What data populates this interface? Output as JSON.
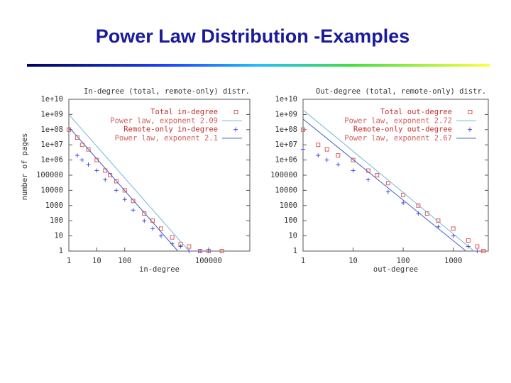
{
  "title": "Power Law Distribution -Examples",
  "chart_data": [
    {
      "type": "scatter",
      "title": "In-degree (total, remote-only) distr.",
      "xlabel": "in-degree",
      "ylabel": "number of pages",
      "log_x": true,
      "log_y": true,
      "xlim": [
        1,
        3000000
      ],
      "ylim": [
        1,
        10000000000
      ],
      "xticks": [
        1,
        10,
        100,
        100000
      ],
      "yticks": [
        1,
        10,
        100,
        1000,
        10000,
        100000,
        {
          "value": 1000000,
          "label": "1e+06"
        },
        {
          "value": 10000000,
          "label": "1e+07"
        },
        {
          "value": 100000000,
          "label": "1e+08"
        },
        {
          "value": 1000000000,
          "label": "1e+09"
        },
        {
          "value": 10000000000,
          "label": "1e+10"
        }
      ],
      "legend": "upper right",
      "series": [
        {
          "name": "Total in-degree",
          "color": "#e05a5a",
          "marker": "square",
          "x": [
            1,
            2,
            3,
            5,
            10,
            20,
            30,
            50,
            100,
            200,
            500,
            1000,
            2000,
            5000,
            10000,
            20000,
            50000,
            100000,
            300000
          ],
          "values": [
            100000000,
            30000000,
            10000000,
            5000000,
            1000000,
            200000,
            100000,
            40000,
            10000,
            2000,
            300,
            100,
            30,
            8,
            3,
            2,
            1,
            1,
            1
          ]
        },
        {
          "name": "Power law, exponent 2.09",
          "color": "#70b8d8",
          "marker": "line",
          "x": [
            1,
            20000
          ],
          "values": [
            1000000000,
            1
          ]
        },
        {
          "name": "Remote-only in-degree",
          "color": "#4a50e0",
          "marker": "plus",
          "x": [
            2,
            3,
            5,
            10,
            20,
            50,
            100,
            200,
            500,
            1000,
            2000,
            5000,
            10000,
            20000,
            50000,
            100000
          ],
          "values": [
            2000000,
            1000000,
            500000,
            200000,
            50000,
            10000,
            2500,
            500,
            100,
            30,
            10,
            3,
            2,
            1,
            1,
            1
          ]
        },
        {
          "name": "Power law, exponent 2.1",
          "color": "#4060c0",
          "marker": "line",
          "x": [
            1,
            8000
          ],
          "values": [
            150000000,
            1
          ]
        }
      ]
    },
    {
      "type": "scatter",
      "title": "Out-degree (total, remote-only) distr.",
      "xlabel": "out-degree",
      "log_x": true,
      "log_y": true,
      "xlim": [
        1,
        5000
      ],
      "ylim": [
        1,
        10000000000
      ],
      "xticks": [
        1,
        10,
        100,
        1000
      ],
      "yticks": [
        1,
        10,
        100,
        1000,
        10000,
        100000,
        {
          "value": 1000000,
          "label": "1e+06"
        },
        {
          "value": 10000000,
          "label": "1e+07"
        },
        {
          "value": 100000000,
          "label": "1e+08"
        },
        {
          "value": 1000000000,
          "label": "1e+09"
        },
        {
          "value": 10000000000,
          "label": "1e+10"
        }
      ],
      "legend": "upper right",
      "series": [
        {
          "name": "Total out-degree",
          "color": "#e05a5a",
          "marker": "square",
          "x": [
            1,
            2,
            3,
            5,
            10,
            20,
            30,
            50,
            100,
            200,
            300,
            500,
            1000,
            2000,
            3000,
            4000
          ],
          "values": [
            100000000,
            10000000,
            5000000,
            2000000,
            1000000,
            200000,
            100000,
            30000,
            5000,
            1000,
            300,
            100,
            30,
            5,
            2,
            1
          ]
        },
        {
          "name": "Power law, exponent 2.72",
          "color": "#70b8d8",
          "marker": "line",
          "x": [
            1,
            2600
          ],
          "values": [
            2000000000,
            1
          ]
        },
        {
          "name": "Remote-only out-degree",
          "color": "#4a50e0",
          "marker": "plus",
          "x": [
            1,
            2,
            3,
            5,
            10,
            20,
            50,
            100,
            200,
            500,
            1000,
            2000,
            3000
          ],
          "values": [
            5000000,
            2000000,
            1000000,
            500000,
            200000,
            50000,
            8000,
            1500,
            300,
            40,
            10,
            2,
            1
          ]
        },
        {
          "name": "Power law, exponent 2.67",
          "color": "#4060c0",
          "marker": "line",
          "x": [
            1,
            1800
          ],
          "values": [
            500000000,
            1
          ]
        }
      ]
    }
  ]
}
